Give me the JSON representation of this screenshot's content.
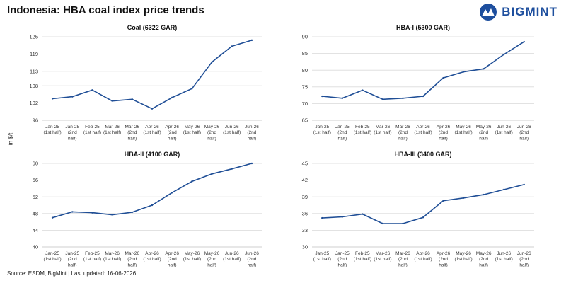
{
  "page": {
    "title": "Indonesia: HBA coal index price trends",
    "ylabel": "in $/t",
    "source": "Source: ESDM, BigMint | Last updated: 16-06-2026"
  },
  "brand": {
    "name": "BIGMINT",
    "color": "#1e4f9e"
  },
  "series_color": "#1f4e96",
  "chart_data": [
    {
      "type": "line",
      "title": "Coal (6322 GAR)",
      "categories": [
        [
          "Jan-25",
          "(1st half)"
        ],
        [
          "Jan-25",
          "(2nd",
          "half)"
        ],
        [
          "Feb-25",
          "(1st half)"
        ],
        [
          "Mar-26",
          "(1st half)"
        ],
        [
          "Mar-26",
          "(2nd",
          "half)"
        ],
        [
          "Apr-26",
          "(1st half)"
        ],
        [
          "Apr-26",
          "(2nd",
          "half)"
        ],
        [
          "May-26",
          "(1st half)"
        ],
        [
          "May-26",
          "(2nd",
          "half)"
        ],
        [
          "Jun-26",
          "(1st half)"
        ],
        [
          "Jun-26",
          "(2nd",
          "half)"
        ]
      ],
      "values": [
        103.5,
        104.2,
        106.5,
        102.7,
        103.3,
        100.0,
        103.9,
        107.0,
        116.2,
        121.7,
        123.8
      ],
      "ylim": [
        96,
        125
      ],
      "yticks": [
        96,
        102,
        108,
        113,
        119,
        125
      ],
      "grid": true
    },
    {
      "type": "line",
      "title": "HBA-I (5300 GAR)",
      "categories": [
        [
          "Jan-25",
          "(1st half)"
        ],
        [
          "Jan-25",
          "(2nd",
          "half)"
        ],
        [
          "Feb-25",
          "(1st half)"
        ],
        [
          "Mar-26",
          "(1st half)"
        ],
        [
          "Mar-26",
          "(2nd",
          "half)"
        ],
        [
          "Apr-26",
          "(1st half)"
        ],
        [
          "Apr-26",
          "(2nd",
          "half)"
        ],
        [
          "May-26",
          "(1st half)"
        ],
        [
          "May-26",
          "(2nd",
          "half)"
        ],
        [
          "Jun-26",
          "(1st half)"
        ],
        [
          "Jun-26",
          "(2nd",
          "half)"
        ]
      ],
      "values": [
        72.2,
        71.6,
        74.0,
        71.3,
        71.6,
        72.2,
        77.7,
        79.5,
        80.4,
        84.7,
        88.5
      ],
      "ylim": [
        65,
        90
      ],
      "yticks": [
        65,
        70,
        75,
        80,
        85,
        90
      ],
      "grid": true
    },
    {
      "type": "line",
      "title": "HBA-II (4100 GAR)",
      "categories": [
        [
          "Jan-25",
          "(1st half)"
        ],
        [
          "Jan-25",
          "(2nd",
          "half)"
        ],
        [
          "Feb-25",
          "(1st half)"
        ],
        [
          "Mar-26",
          "(1st half)"
        ],
        [
          "Mar-26",
          "(2nd",
          "half)"
        ],
        [
          "Apr-26",
          "(1st half)"
        ],
        [
          "Apr-26",
          "(2nd",
          "half)"
        ],
        [
          "May-26",
          "(1st half)"
        ],
        [
          "May-26",
          "(2nd",
          "half)"
        ],
        [
          "Jun-26",
          "(1st half)"
        ],
        [
          "Jun-26",
          "(2nd",
          "half)"
        ]
      ],
      "values": [
        47.0,
        48.4,
        48.2,
        47.7,
        48.3,
        50.0,
        53.0,
        55.7,
        57.5,
        58.7,
        60.0
      ],
      "ylim": [
        40,
        60
      ],
      "yticks": [
        40,
        44,
        48,
        52,
        56,
        60
      ],
      "grid": true
    },
    {
      "type": "line",
      "title": "HBA-III (3400 GAR)",
      "categories": [
        [
          "Jan-25",
          "(1st half)"
        ],
        [
          "Jan-25",
          "(2nd",
          "half)"
        ],
        [
          "Feb-25",
          "(1st half)"
        ],
        [
          "Mar-26",
          "(1st half)"
        ],
        [
          "Mar-26",
          "(2nd",
          "half)"
        ],
        [
          "Apr-26",
          "(1st half)"
        ],
        [
          "Apr-26",
          "(2nd",
          "half)"
        ],
        [
          "May-26",
          "(1st half)"
        ],
        [
          "May-26",
          "(2nd",
          "half)"
        ],
        [
          "Jun-26",
          "(1st half)"
        ],
        [
          "Jun-26",
          "(2nd",
          "half)"
        ]
      ],
      "values": [
        35.2,
        35.4,
        35.9,
        34.2,
        34.2,
        35.3,
        38.3,
        38.8,
        39.4,
        40.3,
        41.2
      ],
      "ylim": [
        30,
        45
      ],
      "yticks": [
        30,
        33,
        36,
        39,
        42,
        45
      ],
      "grid": true
    }
  ]
}
